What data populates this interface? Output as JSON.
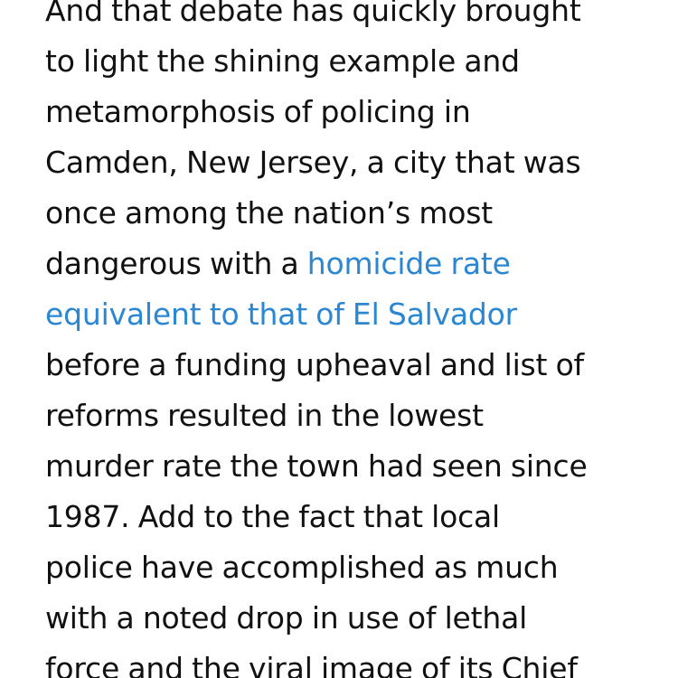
{
  "article": {
    "lines": [
      "And that debate has quickly brought",
      "to light the shining example and",
      "metamorphosis of policing in",
      "Camden, New Jersey, a city that was",
      "once among the nation’s most",
      "dangerous with a ",
      "before a funding upheaval and list of",
      "reforms resulted in the lowest",
      "murder rate the town had seen since",
      "1987. Add to the fact that local",
      "police have accomplished as much",
      "with a noted drop in use of lethal",
      "force and the viral image of its Chief"
    ],
    "link_part1": "homicide rate",
    "link_part2": "equivalent to that of El Salvador"
  },
  "colors": {
    "text": "#111111",
    "link": "#2b87d1",
    "background": "#ffffff"
  }
}
